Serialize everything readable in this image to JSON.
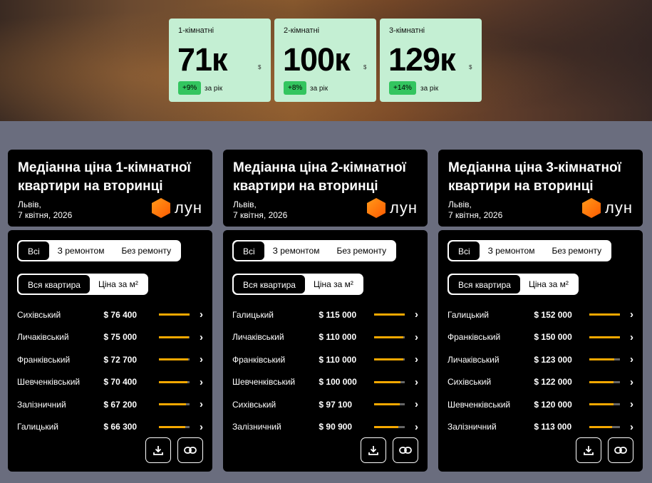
{
  "stats": [
    {
      "label": "1-кімнатні",
      "value": "71к",
      "currency": "$",
      "change": "+9%",
      "period": "за рік"
    },
    {
      "label": "2-кімнатні",
      "value": "100к",
      "currency": "$",
      "change": "+8%",
      "period": "за рік"
    },
    {
      "label": "3-кімнатні",
      "value": "129к",
      "currency": "$",
      "change": "+14%",
      "period": "за рік"
    }
  ],
  "colors": {
    "accent": "#f5a800",
    "badge": "#33c55f",
    "stat_bg": "#c4efd3",
    "logo": "#ff6a00"
  },
  "cards": [
    {
      "title": "Медіанна ціна 1-кімнатної квартири на вторинці",
      "city": "Львів,",
      "date": "7 квітня, 2026",
      "logo": "ЛУН",
      "filter1": [
        "Всі",
        "З ремонтом",
        "Без ремонту"
      ],
      "filter2": [
        "Вся квартира",
        "Ціна за м²"
      ],
      "rows": [
        {
          "name": "Сихівський",
          "price": "$ 76 400",
          "level": 1.0
        },
        {
          "name": "Личаківський",
          "price": "$ 75 000",
          "level": 0.98
        },
        {
          "name": "Франківський",
          "price": "$ 72 700",
          "level": 0.95
        },
        {
          "name": "Шевченківський",
          "price": "$ 70 400",
          "level": 0.92
        },
        {
          "name": "Залізничний",
          "price": "$ 67 200",
          "level": 0.88
        },
        {
          "name": "Галицький",
          "price": "$ 66 300",
          "level": 0.87
        }
      ]
    },
    {
      "title": "Медіанна ціна 2-кімнатної квартири на вторинці",
      "city": "Львів,",
      "date": "7 квітня, 2026",
      "logo": "ЛУН",
      "filter1": [
        "Всі",
        "З ремонтом",
        "Без ремонту"
      ],
      "filter2": [
        "Вся квартира",
        "Ціна за м²"
      ],
      "rows": [
        {
          "name": "Галицький",
          "price": "$ 115 000",
          "level": 1.0
        },
        {
          "name": "Личаківський",
          "price": "$ 110 000",
          "level": 0.96
        },
        {
          "name": "Франківський",
          "price": "$ 110 000",
          "level": 0.96
        },
        {
          "name": "Шевченківський",
          "price": "$ 100 000",
          "level": 0.87
        },
        {
          "name": "Сихівський",
          "price": "$ 97 100",
          "level": 0.84
        },
        {
          "name": "Залізничний",
          "price": "$ 90 900",
          "level": 0.79
        }
      ]
    },
    {
      "title": "Медіанна ціна 3-кімнатної квартири на вторинці",
      "city": "Львів,",
      "date": "7 квітня, 2026",
      "logo": "ЛУН",
      "filter1": [
        "Всі",
        "З ремонтом",
        "Без ремонту"
      ],
      "filter2": [
        "Вся квартира",
        "Ціна за м²"
      ],
      "rows": [
        {
          "name": "Галицький",
          "price": "$ 152 000",
          "level": 1.0
        },
        {
          "name": "Франківський",
          "price": "$ 150 000",
          "level": 0.99
        },
        {
          "name": "Личаківський",
          "price": "$ 123 000",
          "level": 0.81
        },
        {
          "name": "Сихівський",
          "price": "$ 122 000",
          "level": 0.8
        },
        {
          "name": "Шевченківський",
          "price": "$ 120 000",
          "level": 0.79
        },
        {
          "name": "Залізничний",
          "price": "$ 113 000",
          "level": 0.74
        }
      ]
    }
  ]
}
